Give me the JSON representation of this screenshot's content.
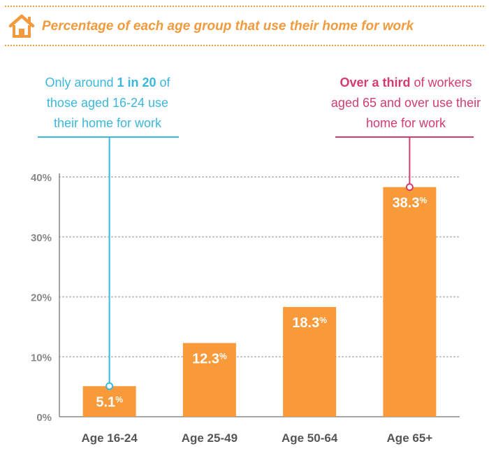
{
  "header": {
    "title": "Percentage of each age group that use their home for work",
    "icon": "house-icon"
  },
  "colors": {
    "accent": "#f29a3e",
    "bar": "#f8993a",
    "annotation_left": "#3bb7dc",
    "annotation_right": "#d33c6c",
    "axis": "#888888",
    "grid": "#bdbdbd"
  },
  "annotations": {
    "left": {
      "pre": "Only around ",
      "bold": "1 in 20",
      "post": " of those aged 16-24 use their home for work",
      "category": "Age 16-24"
    },
    "right": {
      "pre": "",
      "bold": "Over a third",
      "post": " of workers aged 65 and over use their home for work",
      "category": "Age 65+"
    }
  },
  "chart_data": {
    "type": "bar",
    "title": "Percentage of each age group that use their home for work",
    "categories": [
      "Age 16-24",
      "Age 25-49",
      "Age 50-64",
      "Age 65+"
    ],
    "values": [
      5.1,
      12.3,
      18.3,
      38.3
    ],
    "data_labels": [
      "5.1",
      "12.3",
      "18.3",
      "38.3"
    ],
    "label_unit": "%",
    "ylim": [
      0,
      40
    ],
    "yticks": [
      0,
      10,
      20,
      30,
      40
    ],
    "ytick_labels": [
      "0%",
      "10%",
      "20%",
      "30%",
      "40%"
    ],
    "grid": true,
    "xlabel": "",
    "ylabel": ""
  }
}
